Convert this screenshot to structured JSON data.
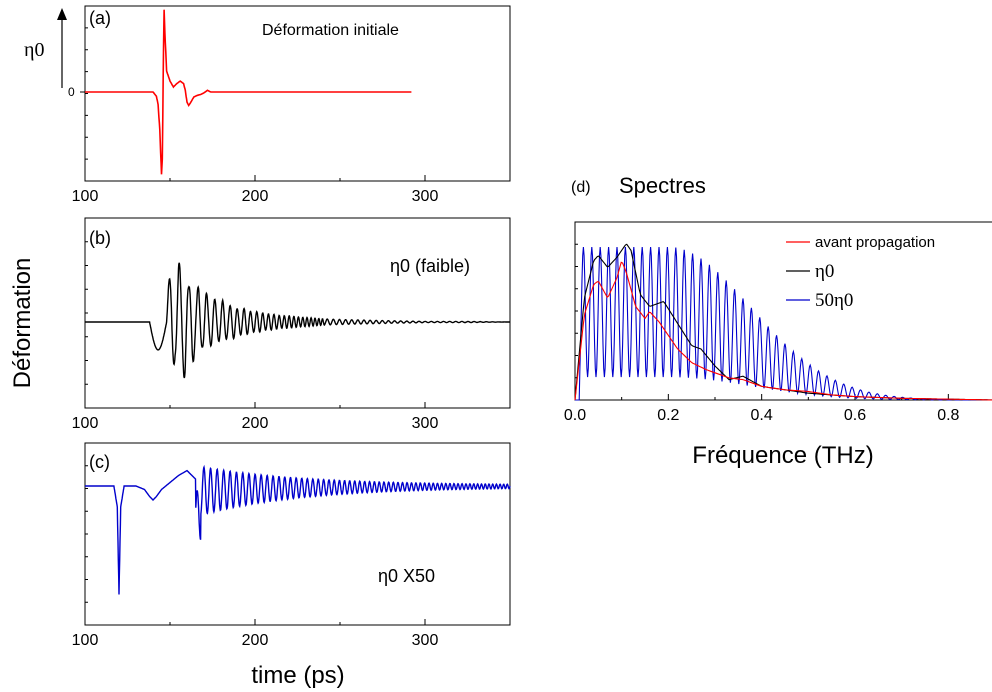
{
  "figure": {
    "ylabel_left": "Déformation",
    "xlabel_left": "time (ps)"
  },
  "chart_data": [
    {
      "panel": "(a)",
      "type": "line",
      "annotation": "Déformation initiale",
      "ylabel": "η0",
      "ytick": "0",
      "xticks": [
        "100",
        "200",
        "300"
      ],
      "xlim": [
        100,
        350
      ],
      "ylim": [
        -1,
        1
      ],
      "color": "#ff0000",
      "x": [
        100,
        140,
        142,
        143,
        144,
        145,
        145.5,
        146,
        146.5,
        147,
        148,
        150,
        152,
        154,
        156,
        158,
        159,
        160,
        161,
        162,
        164,
        166,
        168,
        170,
        172,
        174,
        176,
        180,
        200,
        250,
        292
      ],
      "y": [
        0,
        0,
        -0.05,
        -0.15,
        -0.45,
        -0.98,
        -0.8,
        0.2,
        0.98,
        0.7,
        0.25,
        0.13,
        0.06,
        0.1,
        0.13,
        0.1,
        0.02,
        -0.12,
        -0.16,
        -0.13,
        -0.06,
        -0.04,
        -0.03,
        -0.01,
        0.02,
        0.0,
        0.0,
        0,
        0,
        0,
        0
      ]
    },
    {
      "panel": "(b)",
      "type": "line",
      "annotation": "η0 (faible)",
      "xticks": [
        "100",
        "200",
        "300"
      ],
      "xlim": [
        100,
        350
      ],
      "ylim": [
        -1,
        1
      ],
      "color": "#000000",
      "x": [
        100,
        135,
        140,
        143,
        145,
        147,
        149,
        151,
        153,
        155,
        157,
        159,
        161,
        163,
        165,
        167,
        169,
        171,
        173,
        175,
        178,
        181,
        184,
        187,
        190,
        194,
        198,
        202,
        206,
        210,
        215,
        220,
        226,
        232,
        240,
        250,
        265,
        280,
        300,
        320,
        350
      ],
      "y": [
        0,
        0,
        -0.05,
        -0.3,
        -0.45,
        0.1,
        0.6,
        0.9,
        -0.6,
        -1.0,
        0.8,
        -0.95,
        0.55,
        -0.75,
        0.45,
        -0.6,
        0.4,
        -0.5,
        0.35,
        -0.42,
        0.3,
        -0.35,
        0.25,
        -0.28,
        0.2,
        -0.22,
        0.16,
        -0.17,
        0.13,
        -0.13,
        0.1,
        -0.1,
        0.08,
        -0.07,
        0.05,
        -0.04,
        0.03,
        -0.02,
        0.01,
        -0.01,
        0
      ],
      "envelope": {
        "center": 0
      }
    },
    {
      "panel": "(c)",
      "type": "line",
      "annotation": "η0 X50",
      "xticks": [
        "100",
        "200",
        "300"
      ],
      "xlim": [
        100,
        350
      ],
      "ylim": [
        -1,
        1
      ],
      "color": "#0000cc",
      "x": [
        100,
        117,
        119,
        120,
        121,
        123,
        130,
        135,
        138,
        140,
        142,
        145,
        150,
        155,
        160,
        165
      ],
      "y": [
        0.6,
        0.6,
        0.3,
        -0.95,
        0.3,
        0.6,
        0.6,
        0.55,
        0.45,
        0.4,
        0.45,
        0.55,
        0.65,
        0.75,
        0.82,
        0.7
      ]
    },
    {
      "panel": "(d)",
      "type": "line",
      "title": "Spectres",
      "xlabel": "Fréquence (THz)",
      "xticks": [
        "0.0",
        "0.2",
        "0.4",
        "0.6",
        "0.8"
      ],
      "xlim": [
        0,
        0.9
      ],
      "ylim": [
        0,
        1
      ],
      "legend": [
        {
          "name": "avant propagation",
          "color": "#ff0000"
        },
        {
          "name": "η0",
          "color": "#000000"
        },
        {
          "name": "50η0",
          "color": "#0000cc"
        }
      ],
      "series": [
        {
          "name": "avant propagation",
          "color": "#ff0000",
          "x": [
            0,
            0.02,
            0.04,
            0.05,
            0.07,
            0.09,
            0.1,
            0.11,
            0.13,
            0.15,
            0.16,
            0.18,
            0.2,
            0.22,
            0.25,
            0.28,
            0.3,
            0.33,
            0.36,
            0.4,
            0.45,
            0.5,
            0.55,
            0.6,
            0.7,
            0.8,
            0.9
          ],
          "y": [
            0,
            0.5,
            0.68,
            0.7,
            0.6,
            0.72,
            0.82,
            0.75,
            0.55,
            0.48,
            0.52,
            0.46,
            0.38,
            0.3,
            0.22,
            0.18,
            0.16,
            0.13,
            0.12,
            0.08,
            0.06,
            0.05,
            0.03,
            0.02,
            0.01,
            0.005,
            0
          ]
        },
        {
          "name": "η0",
          "color": "#000000",
          "x": [
            0,
            0.02,
            0.04,
            0.05,
            0.07,
            0.09,
            0.11,
            0.12,
            0.14,
            0.16,
            0.19,
            0.22,
            0.25,
            0.27,
            0.3,
            0.33,
            0.36,
            0.4,
            0.45,
            0.5,
            0.55,
            0.6,
            0.7,
            0.8,
            0.9
          ],
          "y": [
            0,
            0.6,
            0.82,
            0.85,
            0.78,
            0.84,
            0.92,
            0.88,
            0.62,
            0.55,
            0.58,
            0.45,
            0.32,
            0.3,
            0.2,
            0.12,
            0.14,
            0.08,
            0.06,
            0.04,
            0.03,
            0.02,
            0.01,
            0.005,
            0
          ]
        }
      ]
    }
  ]
}
